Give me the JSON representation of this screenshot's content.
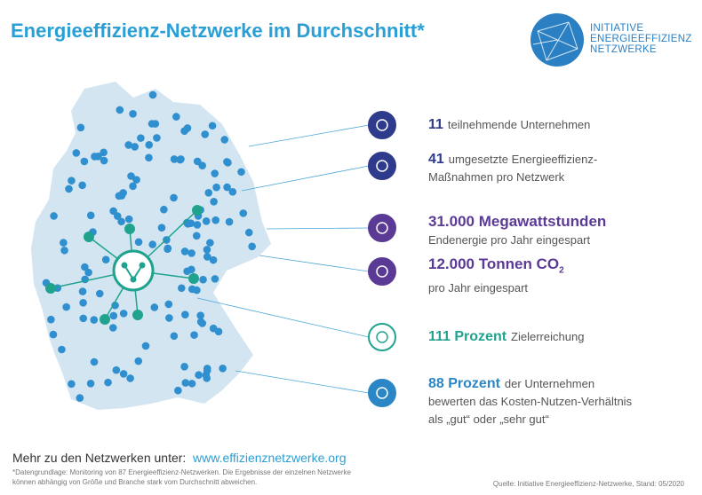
{
  "title": "Energieeffizienz-Netzwerke im Durchschnitt*",
  "logo": {
    "lines": [
      "INITIATIVE",
      "ENERGIEEFFIZIENZ",
      "NETZWERKE"
    ]
  },
  "stats": [
    {
      "value": "11",
      "lines": [
        "teilnehmende Unternehmen"
      ],
      "color": "#2e3a8c"
    },
    {
      "value": "41",
      "lines": [
        "umgesetzte Energieeffizienz-",
        "Maßnahmen pro Netzwerk"
      ],
      "color": "#2e3a8c"
    },
    {
      "value": "31.000 Megawattstunden",
      "lines": [
        "Endenergie pro Jahr eingespart"
      ],
      "color": "#5b3a96"
    },
    {
      "value": "12.000 Tonnen CO",
      "subscript": "2",
      "lines": [
        "pro Jahr eingespart"
      ],
      "color": "#5b3a96"
    },
    {
      "value": "111 Prozent",
      "lines": [
        "Zielerreichung"
      ],
      "color": "#1fa38f"
    },
    {
      "value": "88 Prozent",
      "lines": [
        "der Unternehmen",
        "bewerten das Kosten-Nutzen-Verhältnis",
        "als „gut“ oder „sehr gut“"
      ],
      "color": "#2b86c5"
    }
  ],
  "footer": {
    "intro": "Mehr zu den Netzwerken unter:",
    "link": "www.effizienznetzwerke.org",
    "footnote": [
      "*Datengrundlage: Monitoring von 87 Energieeffizienz-Netzwerken. Die Ergebnisse der einzelnen Netzwerke",
      "können abhängig von Größe und Branche stark vom Durchschnitt abweichen."
    ],
    "source": "Quelle: Initiative Energieeffizienz-Netzwerke, Stand: 05/2020"
  }
}
